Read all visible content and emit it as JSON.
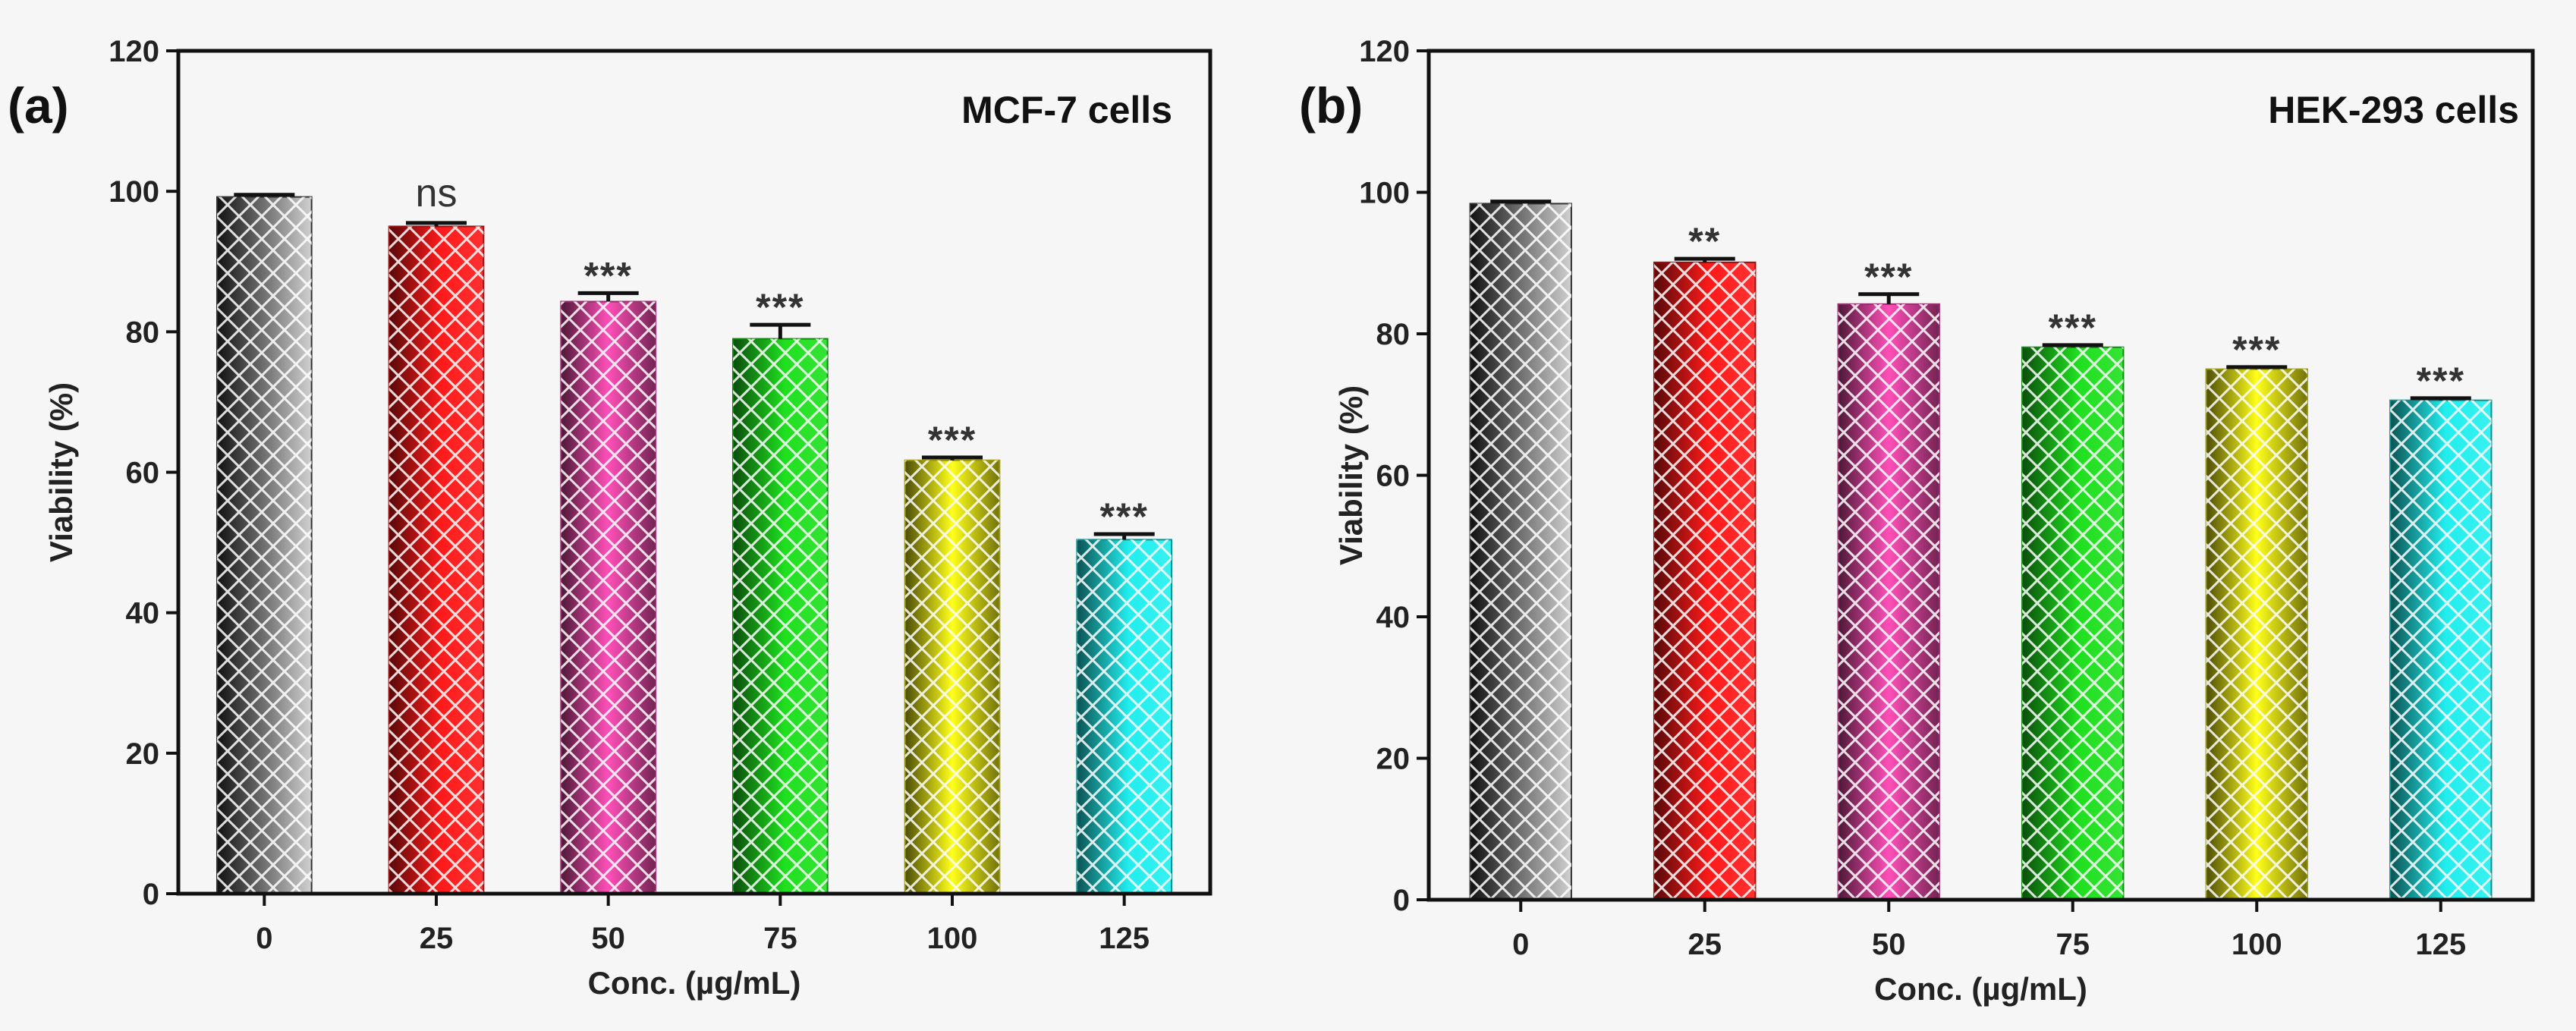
{
  "chart_data": [
    {
      "type": "bar",
      "panel_label": "(a)",
      "title": "MCF-7 cells",
      "xlabel": "Conc. (µg/mL)",
      "ylabel": "Viability (%)",
      "ylim": [
        0,
        120
      ],
      "yticks": [
        "0",
        "20",
        "40",
        "60",
        "80",
        "100",
        "120"
      ],
      "categories": [
        "0",
        "25",
        "50",
        "75",
        "100",
        "125"
      ],
      "values": [
        99.2,
        95.0,
        84.3,
        79.0,
        61.7,
        50.4
      ],
      "errors": [
        0.3,
        0.5,
        1.2,
        2.0,
        0.4,
        0.8
      ],
      "significance": [
        "",
        "ns",
        "***",
        "***",
        "***",
        "***"
      ],
      "bar_colors": [
        "#555555",
        "#ff1a1a",
        "#ff4fb8",
        "#1fe01f",
        "#ffff1a",
        "#22eeee"
      ],
      "grid": false
    },
    {
      "type": "bar",
      "panel_label": "(b)",
      "title": "HEK-293 cells",
      "xlabel": "Conc. (µg/mL)",
      "ylabel": "Viability (%)",
      "ylim": [
        0,
        120
      ],
      "yticks": [
        "0",
        "20",
        "40",
        "60",
        "80",
        "100",
        "120"
      ],
      "categories": [
        "0",
        "25",
        "50",
        "75",
        "100",
        "125"
      ],
      "values": [
        98.4,
        90.1,
        84.2,
        78.1,
        75.0,
        70.6
      ],
      "errors": [
        0.3,
        0.5,
        1.4,
        0.3,
        0.3,
        0.3
      ],
      "significance": [
        "",
        "**",
        "***",
        "***",
        "***",
        "***"
      ],
      "bar_colors": [
        "#555555",
        "#ff1a1a",
        "#ff4fb8",
        "#1fe01f",
        "#ffff1a",
        "#22eeee"
      ],
      "grid": false
    }
  ]
}
